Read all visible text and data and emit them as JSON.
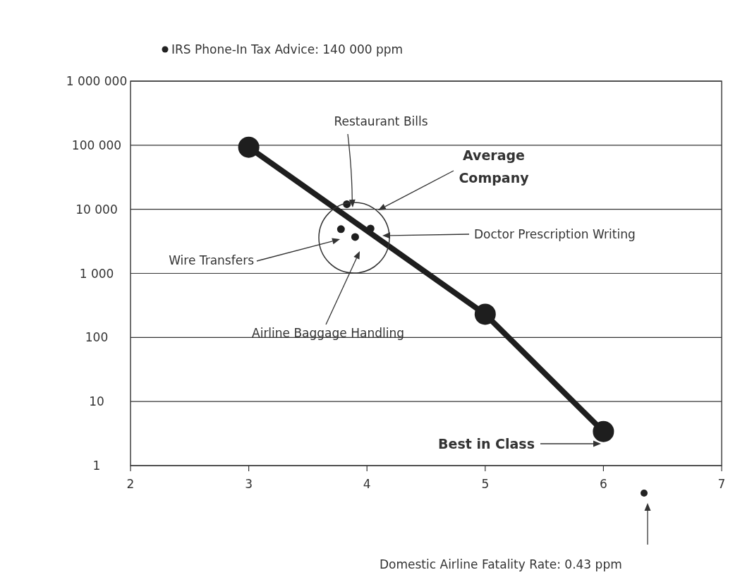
{
  "chart_data": {
    "type": "line",
    "xlim": [
      2,
      7
    ],
    "xticks": [
      2,
      3,
      4,
      5,
      6,
      7
    ],
    "ylim": [
      1,
      1000000
    ],
    "log": true,
    "grid": "y",
    "marker": "circle",
    "yticks": [
      {
        "value": 1,
        "label": "1"
      },
      {
        "value": 10,
        "label": "10"
      },
      {
        "value": 100,
        "label": "100"
      },
      {
        "value": 1000,
        "label": "1 000"
      },
      {
        "value": 10000,
        "label": "10 000"
      },
      {
        "value": 100000,
        "label": "100 000"
      },
      {
        "value": 1000000,
        "label": "1 000 000"
      }
    ],
    "series": [
      {
        "color": "#1e1e1e",
        "x": [
          3,
          5,
          6
        ],
        "values": [
          93000,
          230,
          3.4
        ]
      },
      {
        "type": "scatter",
        "color": "#1e1e1e",
        "x": [
          3.83,
          3.78,
          3.9,
          4.03
        ],
        "values": [
          12000,
          4900,
          3700,
          5000
        ]
      }
    ],
    "annotations": [
      "Restaurant Bills",
      "Wire Transfers",
      "Airline Baggage Handling",
      "Doctor Prescription Writing",
      "Average Company",
      "Best in Class",
      "IRS Phone-In Tax Advice: 140 000 ppm",
      "Domestic Airline Fatality Rate: 0.43 ppm"
    ]
  }
}
